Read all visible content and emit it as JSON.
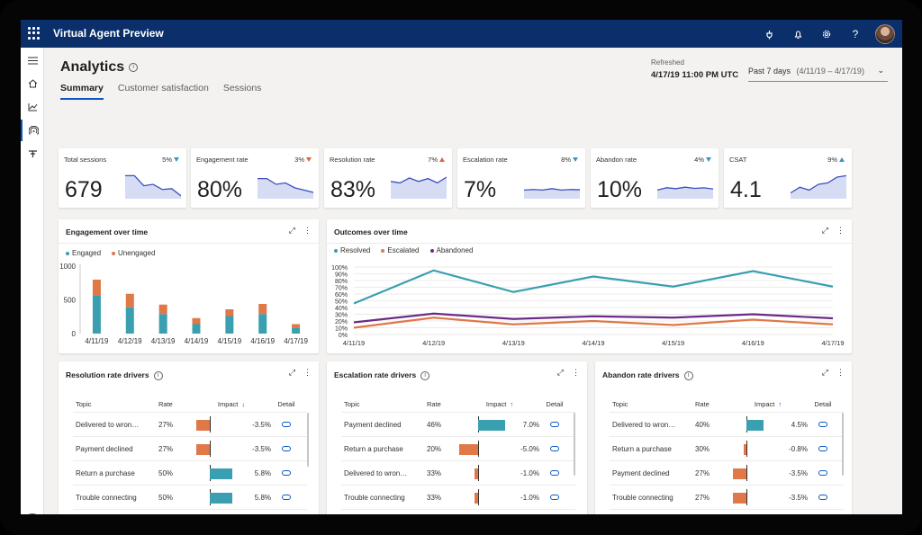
{
  "app": {
    "title": "Virtual Agent Preview"
  },
  "header": {
    "title": "Analytics",
    "tabs": [
      "Summary",
      "Customer satisfaction",
      "Sessions"
    ],
    "refreshed_label": "Refreshed",
    "refreshed_value": "4/17/19 11:00 PM UTC",
    "range_label": "Past 7 days",
    "range_value": "(4/11/19 – 4/17/19)"
  },
  "kpis": [
    {
      "label": "Total sessions",
      "value": "679",
      "delta": "5%",
      "trend": "down",
      "trend_color": "#3a96c8",
      "spark": [
        0.8,
        0.8,
        0.45,
        0.5,
        0.32,
        0.35,
        0.1
      ]
    },
    {
      "label": "Engagement rate",
      "value": "80%",
      "delta": "3%",
      "trend": "down",
      "trend_color": "#e0643a",
      "spark": [
        0.7,
        0.7,
        0.5,
        0.55,
        0.38,
        0.3,
        0.22
      ]
    },
    {
      "label": "Resolution rate",
      "value": "83%",
      "delta": "7%",
      "trend": "up",
      "trend_color": "#e0643a",
      "spark": [
        0.6,
        0.55,
        0.72,
        0.6,
        0.7,
        0.55,
        0.75
      ]
    },
    {
      "label": "Escalation rate",
      "value": "7%",
      "delta": "8%",
      "trend": "down",
      "trend_color": "#3a96c8",
      "spark": [
        0.3,
        0.32,
        0.3,
        0.35,
        0.3,
        0.32,
        0.31
      ]
    },
    {
      "label": "Abandon rate",
      "value": "10%",
      "delta": "4%",
      "trend": "down",
      "trend_color": "#3a96c8",
      "spark": [
        0.3,
        0.38,
        0.35,
        0.4,
        0.36,
        0.38,
        0.34
      ]
    },
    {
      "label": "CSAT",
      "value": "4.1",
      "delta": "9%",
      "trend": "up",
      "trend_color": "#3a96c8",
      "spark": [
        0.2,
        0.4,
        0.3,
        0.5,
        0.55,
        0.75,
        0.8
      ]
    }
  ],
  "engagement_card": {
    "title": "Engagement over time"
  },
  "outcomes_card": {
    "title": "Outcomes over time"
  },
  "chart_data": [
    {
      "type": "bar",
      "title": "Engagement over time",
      "stacked": true,
      "categories": [
        "4/11/19",
        "4/12/19",
        "4/13/19",
        "4/14/19",
        "4/15/19",
        "4/16/19",
        "4/17/19"
      ],
      "series": [
        {
          "name": "Engaged",
          "color": "#3a9fb0",
          "values": [
            560,
            390,
            290,
            140,
            260,
            290,
            90
          ]
        },
        {
          "name": "Unengaged",
          "color": "#e07848",
          "values": [
            240,
            200,
            140,
            90,
            100,
            150,
            50
          ]
        }
      ],
      "ylim": [
        0,
        1000
      ],
      "yticks": [
        0,
        500,
        1000
      ],
      "legend": "top-left"
    },
    {
      "type": "line",
      "title": "Outcomes over time",
      "categories": [
        "4/11/19",
        "4/12/19",
        "4/13/19",
        "4/14/19",
        "4/15/19",
        "4/16/19",
        "4/17/19"
      ],
      "series": [
        {
          "name": "Resolved",
          "color": "#3a9fb0",
          "values": [
            46,
            95,
            63,
            86,
            71,
            94,
            71
          ]
        },
        {
          "name": "Escalated",
          "color": "#e07848",
          "values": [
            10,
            25,
            15,
            20,
            14,
            22,
            15
          ]
        },
        {
          "name": "Abandoned",
          "color": "#6b2b86",
          "values": [
            18,
            31,
            23,
            27,
            25,
            30,
            24
          ]
        }
      ],
      "ylim": [
        0,
        100
      ],
      "yticks": [
        "0%",
        "10%",
        "20%",
        "30%",
        "40%",
        "50%",
        "60%",
        "70%",
        "80%",
        "90%",
        "100%"
      ],
      "legend": "top-left"
    }
  ],
  "driver_tables": [
    {
      "title": "Resolution rate drivers",
      "sort": "down",
      "headers": [
        "Topic",
        "Rate",
        "Impact",
        "Detail"
      ],
      "rows": [
        {
          "topic": "Delivered to wron…",
          "rate": "27%",
          "impact": "-3.5%",
          "value": -3.5
        },
        {
          "topic": "Payment declined",
          "rate": "27%",
          "impact": "-3.5%",
          "value": -3.5
        },
        {
          "topic": "Return a purchase",
          "rate": "50%",
          "impact": "5.8%",
          "value": 5.8
        },
        {
          "topic": "Trouble connecting",
          "rate": "50%",
          "impact": "5.8%",
          "value": 5.8
        }
      ]
    },
    {
      "title": "Escalation rate drivers",
      "sort": "up",
      "headers": [
        "Topic",
        "Rate",
        "Impact",
        "Detail"
      ],
      "rows": [
        {
          "topic": "Payment declined",
          "rate": "46%",
          "impact": "7.0%",
          "value": 7.0
        },
        {
          "topic": "Return a purchase",
          "rate": "20%",
          "impact": "-5.0%",
          "value": -5.0
        },
        {
          "topic": "Delivered to wron…",
          "rate": "33%",
          "impact": "-1.0%",
          "value": -1.0
        },
        {
          "topic": "Trouble connecting",
          "rate": "33%",
          "impact": "-1.0%",
          "value": -1.0
        }
      ]
    },
    {
      "title": "Abandon rate drivers",
      "sort": "up",
      "headers": [
        "Topic",
        "Rate",
        "Impact",
        "Detail"
      ],
      "rows": [
        {
          "topic": "Delivered to wron…",
          "rate": "40%",
          "impact": "4.5%",
          "value": 4.5
        },
        {
          "topic": "Return a purchase",
          "rate": "30%",
          "impact": "-0.8%",
          "value": -0.8
        },
        {
          "topic": "Payment declined",
          "rate": "27%",
          "impact": "-3.5%",
          "value": -3.5
        },
        {
          "topic": "Trouble connecting",
          "rate": "27%",
          "impact": "-3.5%",
          "value": -3.5
        }
      ]
    }
  ],
  "colors": {
    "accent": "#0b58c4",
    "topbar": "#0b2f6b",
    "positive": "#3a9fb0",
    "negative": "#e07848",
    "spark_fill": "#d6dcf3",
    "spark_line": "#3b4fbf"
  }
}
